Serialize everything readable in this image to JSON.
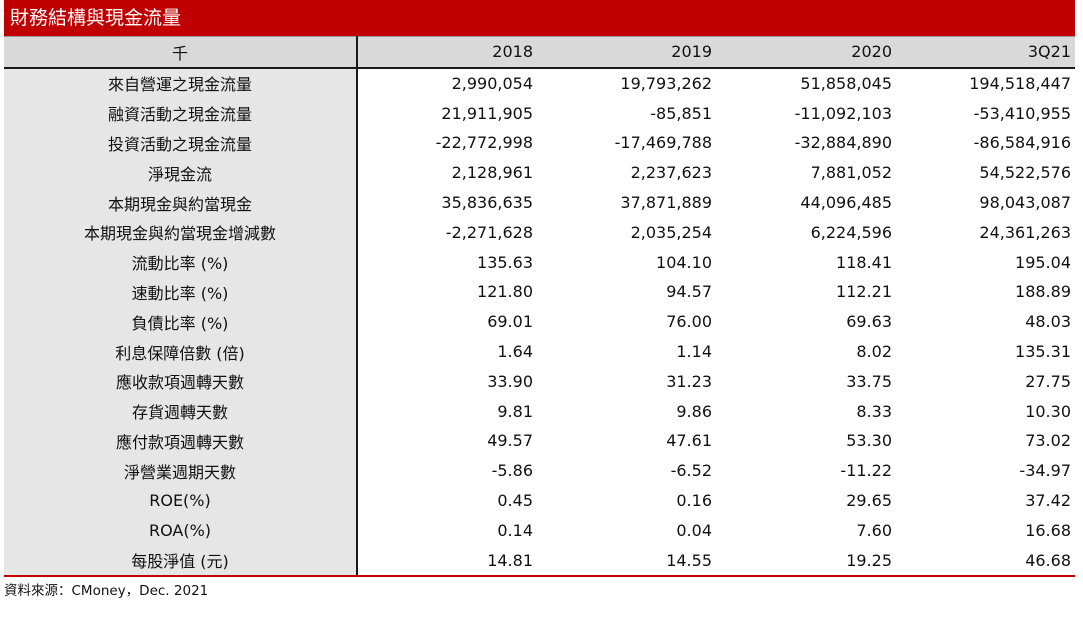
{
  "title": "財務結構與現金流量",
  "table": {
    "unit_header": "千",
    "columns": [
      "2018",
      "2019",
      "2020",
      "3Q21"
    ],
    "rows": [
      {
        "label": "來自營運之現金流量",
        "values": [
          "2,990,054",
          "19,793,262",
          "51,858,045",
          "194,518,447"
        ]
      },
      {
        "label": "融資活動之現金流量",
        "values": [
          "21,911,905",
          "-85,851",
          "-11,092,103",
          "-53,410,955"
        ]
      },
      {
        "label": "投資活動之現金流量",
        "values": [
          "-22,772,998",
          "-17,469,788",
          "-32,884,890",
          "-86,584,916"
        ]
      },
      {
        "label": "淨現金流",
        "values": [
          "2,128,961",
          "2,237,623",
          "7,881,052",
          "54,522,576"
        ]
      },
      {
        "label": "本期現金與約當現金",
        "values": [
          "35,836,635",
          "37,871,889",
          "44,096,485",
          "98,043,087"
        ]
      },
      {
        "label": "本期現金與約當現金增減數",
        "values": [
          "-2,271,628",
          "2,035,254",
          "6,224,596",
          "24,361,263"
        ]
      },
      {
        "label": "流動比率 (%)",
        "values": [
          "135.63",
          "104.10",
          "118.41",
          "195.04"
        ]
      },
      {
        "label": "速動比率 (%)",
        "values": [
          "121.80",
          "94.57",
          "112.21",
          "188.89"
        ]
      },
      {
        "label": "負債比率 (%)",
        "values": [
          "69.01",
          "76.00",
          "69.63",
          "48.03"
        ]
      },
      {
        "label": "利息保障倍數 (倍)",
        "values": [
          "1.64",
          "1.14",
          "8.02",
          "135.31"
        ]
      },
      {
        "label": "應收款項週轉天數",
        "values": [
          "33.90",
          "31.23",
          "33.75",
          "27.75"
        ]
      },
      {
        "label": "存貨週轉天數",
        "values": [
          "9.81",
          "9.86",
          "8.33",
          "10.30"
        ]
      },
      {
        "label": "應付款項週轉天數",
        "values": [
          "49.57",
          "47.61",
          "53.30",
          "73.02"
        ]
      },
      {
        "label": "淨營業週期天數",
        "values": [
          "-5.86",
          "-6.52",
          "-11.22",
          "-34.97"
        ]
      },
      {
        "label": "ROE(%)",
        "values": [
          "0.45",
          "0.16",
          "29.65",
          "37.42"
        ]
      },
      {
        "label": "ROA(%)",
        "values": [
          "0.14",
          "0.04",
          "7.60",
          "16.68"
        ]
      },
      {
        "label": "每股淨值 (元)",
        "values": [
          "14.81",
          "14.55",
          "19.25",
          "46.68"
        ]
      }
    ]
  },
  "source": "資料來源：CMoney，Dec. 2021",
  "colors": {
    "accent": "#c00000",
    "header_bg": "#d9d9d9",
    "label_bg": "#e6e6e6"
  }
}
